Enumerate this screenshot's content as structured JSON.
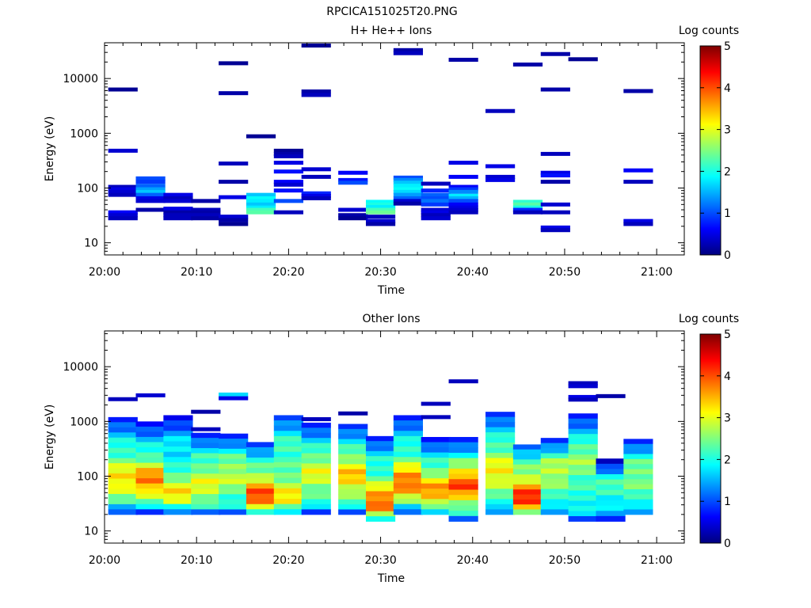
{
  "figure_title": "RPCICA151025T20.PNG",
  "colorscale": {
    "name": "jet",
    "stops": [
      "#00007f",
      "#0000ff",
      "#007fff",
      "#00ffff",
      "#7fff7f",
      "#ffff00",
      "#ff7f00",
      "#ff0000",
      "#7f0000"
    ]
  },
  "chart_data": [
    {
      "type": "heatmap",
      "title": "H+ He++ Ions",
      "xlabel": "Time",
      "ylabel": "Energy (eV)",
      "colorbar_label": "Log counts",
      "colorbar_ticks": [
        "0",
        "1",
        "2",
        "3",
        "4",
        "5"
      ],
      "clim": [
        0,
        5
      ],
      "yscale": "log",
      "ylim": [
        6,
        45000
      ],
      "xlim": [
        "20:00",
        "21:03"
      ],
      "xticks": [
        "20:00",
        "20:10",
        "20:20",
        "20:30",
        "20:40",
        "20:50",
        "21:00"
      ],
      "yticks": [
        "10",
        "100",
        "1000",
        "10000"
      ],
      "columns": [
        {
          "t": "20:02",
          "bins": [
            [
              6300,
              0.1
            ],
            [
              480,
              0.4
            ],
            [
              105,
              0.3
            ],
            [
              95,
              0.5
            ],
            [
              85,
              0.4
            ],
            [
              75,
              0.3
            ],
            [
              36,
              0.6
            ],
            [
              32,
              0.4
            ],
            [
              28,
              0.3
            ]
          ]
        },
        {
          "t": "20:05",
          "bins": [
            [
              150,
              1.0
            ],
            [
              130,
              0.9
            ],
            [
              110,
              1.1
            ],
            [
              95,
              1.4
            ],
            [
              85,
              1.6
            ],
            [
              75,
              1.1
            ],
            [
              65,
              0.5
            ],
            [
              58,
              0.4
            ],
            [
              40,
              0.2
            ]
          ]
        },
        {
          "t": "20:08",
          "bins": [
            [
              75,
              0.5
            ],
            [
              65,
              0.3
            ],
            [
              58,
              0.4
            ],
            [
              42,
              0.5
            ],
            [
              36,
              0.2
            ],
            [
              32,
              0.3
            ],
            [
              28,
              0.3
            ]
          ]
        },
        {
          "t": "20:11",
          "bins": [
            [
              58,
              0.2
            ],
            [
              40,
              0.3
            ],
            [
              36,
              0.2
            ],
            [
              32,
              0.3
            ],
            [
              28,
              0.2
            ]
          ]
        },
        {
          "t": "20:14",
          "bins": [
            [
              19000,
              0.1
            ],
            [
              5400,
              0.2
            ],
            [
              280,
              0.3
            ],
            [
              130,
              0.2
            ],
            [
              68,
              0.5
            ],
            [
              30,
              0.4
            ],
            [
              26,
              0.2
            ],
            [
              22,
              0.1
            ]
          ]
        },
        {
          "t": "20:17",
          "bins": [
            [
              880,
              0.1
            ],
            [
              75,
              1.6
            ],
            [
              65,
              1.9
            ],
            [
              58,
              1.8
            ],
            [
              50,
              1.6
            ],
            [
              44,
              1.8
            ],
            [
              40,
              2.2
            ],
            [
              36,
              2.3
            ]
          ]
        },
        {
          "t": "20:20",
          "bins": [
            [
              480,
              0.1
            ],
            [
              420,
              0.2
            ],
            [
              380,
              0.3
            ],
            [
              290,
              0.5
            ],
            [
              200,
              0.7
            ],
            [
              130,
              0.6
            ],
            [
              115,
              0.4
            ],
            [
              90,
              0.7
            ],
            [
              58,
              1.0
            ],
            [
              36,
              0.3
            ]
          ]
        },
        {
          "t": "20:23",
          "bins": [
            [
              40000,
              0.1
            ],
            [
              5800,
              0.2
            ],
            [
              5000,
              0.3
            ],
            [
              220,
              0.4
            ],
            [
              160,
              0.3
            ],
            [
              80,
              0.8
            ],
            [
              72,
              0.5
            ],
            [
              65,
              0.3
            ]
          ]
        },
        {
          "t": "20:27",
          "bins": [
            [
              190,
              0.6
            ],
            [
              140,
              0.7
            ],
            [
              125,
              1.0
            ],
            [
              40,
              0.4
            ],
            [
              32,
              0.2
            ],
            [
              28,
              0.1
            ]
          ]
        },
        {
          "t": "20:30",
          "bins": [
            [
              56,
              1.9
            ],
            [
              50,
              2.0
            ],
            [
              45,
              1.8
            ],
            [
              40,
              2.2
            ],
            [
              36,
              2.4
            ],
            [
              30,
              0.3
            ],
            [
              25,
              0.4
            ],
            [
              22,
              0.2
            ]
          ]
        },
        {
          "t": "20:33",
          "bins": [
            [
              33000,
              0.2
            ],
            [
              29000,
              0.3
            ],
            [
              155,
              1.0
            ],
            [
              140,
              1.3
            ],
            [
              125,
              1.6
            ],
            [
              110,
              1.8
            ],
            [
              95,
              1.9
            ],
            [
              85,
              1.7
            ],
            [
              75,
              1.4
            ],
            [
              65,
              1.1
            ],
            [
              58,
              0.4
            ],
            [
              52,
              0.2
            ]
          ]
        },
        {
          "t": "20:36",
          "bins": [
            [
              120,
              0.3
            ],
            [
              90,
              0.8
            ],
            [
              75,
              1.1
            ],
            [
              65,
              1.0
            ],
            [
              58,
              1.2
            ],
            [
              50,
              0.9
            ],
            [
              40,
              0.4
            ],
            [
              36,
              0.5
            ],
            [
              32,
              0.3
            ],
            [
              28,
              0.4
            ]
          ]
        },
        {
          "t": "20:39",
          "bins": [
            [
              22000,
              0.2
            ],
            [
              290,
              0.5
            ],
            [
              160,
              0.6
            ],
            [
              105,
              0.6
            ],
            [
              95,
              0.9
            ],
            [
              85,
              1.3
            ],
            [
              72,
              1.8
            ],
            [
              65,
              1.5
            ],
            [
              58,
              1.0
            ],
            [
              50,
              0.6
            ],
            [
              44,
              0.5
            ],
            [
              40,
              0.4
            ],
            [
              36,
              0.3
            ]
          ]
        },
        {
          "t": "20:43",
          "bins": [
            [
              2550,
              0.3
            ],
            [
              250,
              0.5
            ],
            [
              160,
              0.4
            ],
            [
              140,
              0.5
            ]
          ]
        },
        {
          "t": "20:46",
          "bins": [
            [
              18000,
              0.2
            ],
            [
              56,
              2.1
            ],
            [
              50,
              2.3
            ],
            [
              44,
              2.0
            ],
            [
              40,
              0.8
            ],
            [
              36,
              0.3
            ]
          ]
        },
        {
          "t": "20:49",
          "bins": [
            [
              28000,
              0.2
            ],
            [
              6300,
              0.2
            ],
            [
              420,
              0.3
            ],
            [
              190,
              0.5
            ],
            [
              170,
              0.7
            ],
            [
              130,
              0.2
            ],
            [
              50,
              0.4
            ],
            [
              36,
              0.3
            ],
            [
              19,
              0.5
            ],
            [
              17,
              0.3
            ]
          ]
        },
        {
          "t": "20:52",
          "bins": [
            [
              22500,
              0.1
            ]
          ]
        },
        {
          "t": "20:58",
          "bins": [
            [
              5900,
              0.2
            ],
            [
              210,
              0.6
            ],
            [
              130,
              0.3
            ],
            [
              25,
              0.5
            ],
            [
              22,
              0.3
            ]
          ]
        }
      ]
    },
    {
      "type": "heatmap",
      "title": "Other Ions",
      "xlabel": "Time",
      "ylabel": "Energy (eV)",
      "colorbar_label": "Log counts",
      "colorbar_ticks": [
        "0",
        "1",
        "2",
        "3",
        "4",
        "5"
      ],
      "clim": [
        0,
        5
      ],
      "yscale": "log",
      "ylim": [
        6,
        45000
      ],
      "xlim": [
        "20:00",
        "21:03"
      ],
      "xticks": [
        "20:00",
        "20:10",
        "20:20",
        "20:30",
        "20:40",
        "20:50",
        "21:00"
      ],
      "yticks": [
        "10",
        "100",
        "1000",
        "10000"
      ],
      "columns": [
        {
          "t": "20:02",
          "top": 1200,
          "bottom": 20,
          "base": 2.0,
          "peak": 3.3,
          "peakE": 90,
          "extra": [
            [
              2550,
              0.3
            ]
          ]
        },
        {
          "t": "20:05",
          "top": 1000,
          "bottom": 20,
          "base": 1.9,
          "peak": 3.8,
          "peakE": 85,
          "extra": [
            [
              3000,
              0.4
            ]
          ]
        },
        {
          "t": "20:08",
          "top": 1300,
          "bottom": 20,
          "base": 1.8,
          "peak": 3.2,
          "peakE": 50,
          "extra": []
        },
        {
          "t": "20:11",
          "top": 620,
          "bottom": 20,
          "base": 2.0,
          "peak": 3.0,
          "peakE": 70,
          "extra": [
            [
              1500,
              0.2
            ],
            [
              720,
              0.3
            ]
          ]
        },
        {
          "t": "20:14",
          "top": 600,
          "bottom": 20,
          "base": 2.0,
          "peak": 2.8,
          "peakE": 100,
          "extra": [
            [
              3100,
              1.7
            ],
            [
              2650,
              0.5
            ]
          ]
        },
        {
          "t": "20:17",
          "top": 420,
          "bottom": 20,
          "base": 2.1,
          "peak": 4.0,
          "peakE": 45,
          "extra": []
        },
        {
          "t": "20:20",
          "top": 1300,
          "bottom": 20,
          "base": 2.2,
          "peak": 3.2,
          "peakE": 40,
          "extra": []
        },
        {
          "t": "20:23",
          "top": 950,
          "bottom": 20,
          "base": 2.0,
          "peak": 3.0,
          "peakE": 110,
          "extra": [
            [
              1100,
              0.3
            ]
          ]
        },
        {
          "t": "20:27",
          "top": 900,
          "bottom": 20,
          "base": 2.1,
          "peak": 3.4,
          "peakE": 100,
          "extra": [
            [
              1400,
              0.2
            ]
          ]
        },
        {
          "t": "20:30",
          "top": 540,
          "bottom": 15,
          "base": 2.0,
          "peak": 3.9,
          "peakE": 35,
          "extra": []
        },
        {
          "t": "20:33",
          "top": 1300,
          "bottom": 20,
          "base": 2.0,
          "peak": 3.9,
          "peakE": 80,
          "extra": []
        },
        {
          "t": "20:36",
          "top": 520,
          "bottom": 20,
          "base": 1.9,
          "peak": 3.6,
          "peakE": 55,
          "extra": [
            [
              2100,
              0.3
            ],
            [
              1200,
              0.3
            ]
          ]
        },
        {
          "t": "20:39",
          "top": 520,
          "bottom": 15,
          "base": 2.0,
          "peak": 4.0,
          "peakE": 70,
          "extra": [
            [
              5400,
              0.3
            ]
          ]
        },
        {
          "t": "20:43",
          "top": 1500,
          "bottom": 20,
          "base": 2.1,
          "peak": 3.2,
          "peakE": 120,
          "extra": []
        },
        {
          "t": "20:46",
          "top": 380,
          "bottom": 20,
          "base": 2.3,
          "peak": 4.2,
          "peakE": 40,
          "extra": []
        },
        {
          "t": "20:49",
          "top": 500,
          "bottom": 20,
          "base": 2.0,
          "peak": 2.8,
          "peakE": 120,
          "extra": []
        },
        {
          "t": "20:52",
          "top": 1400,
          "bottom": 15,
          "base": 2.0,
          "peak": 2.6,
          "peakE": 180,
          "extra": [
            [
              5000,
              0.3
            ],
            [
              4400,
              0.4
            ],
            [
              2800,
              0.5
            ],
            [
              2500,
              0.3
            ]
          ]
        },
        {
          "t": "20:55",
          "top": 210,
          "bottom": 15,
          "base": 1.4,
          "peak": 2.2,
          "peakE": 60,
          "extra": [
            [
              2900,
              0.2
            ]
          ]
        },
        {
          "t": "20:58",
          "top": 480,
          "bottom": 20,
          "base": 2.0,
          "peak": 2.5,
          "peakE": 100,
          "extra": []
        }
      ]
    }
  ]
}
